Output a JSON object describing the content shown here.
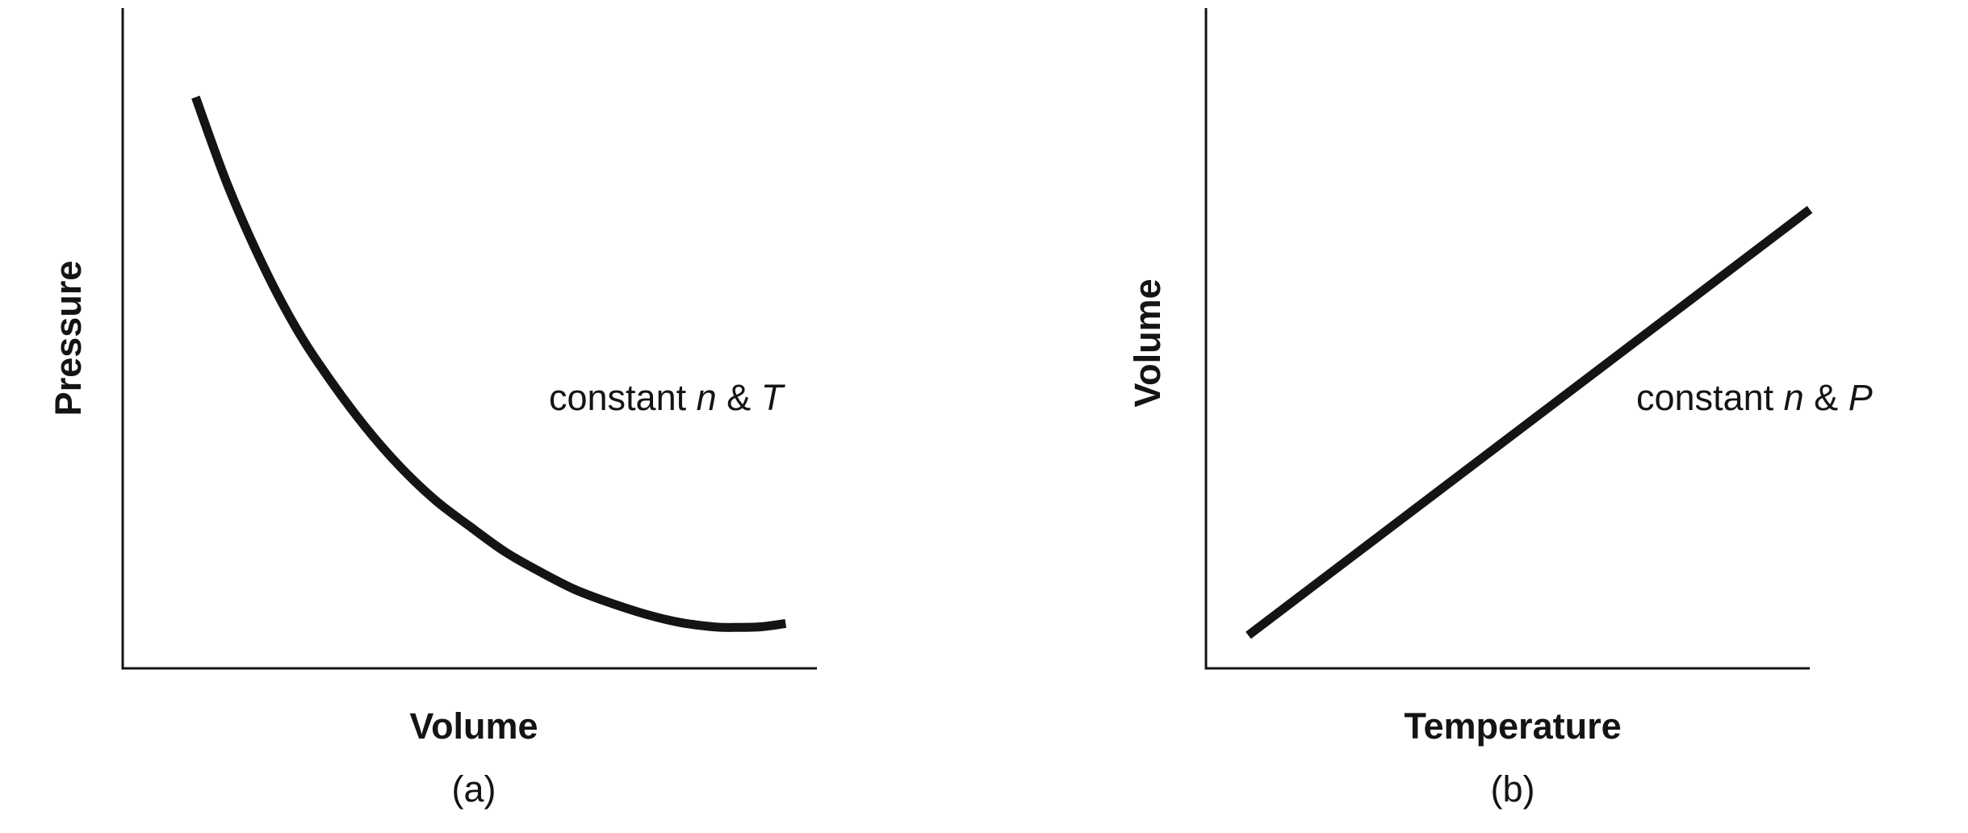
{
  "chart_data": [
    {
      "type": "line",
      "panel_label": "(a)",
      "xlabel": "Volume",
      "ylabel": "Pressure",
      "annotation": {
        "prefix": "constant ",
        "var1": "n",
        "joiner": " & ",
        "var2": "T"
      },
      "grid": false,
      "xlim": [
        0,
        1
      ],
      "ylim": [
        0,
        1
      ],
      "series": [
        {
          "x": [
            0.105,
            0.15,
            0.2,
            0.25,
            0.3,
            0.35,
            0.4,
            0.45,
            0.5,
            0.55,
            0.6,
            0.65,
            0.7,
            0.75,
            0.8,
            0.85,
            0.88,
            0.92,
            0.955
          ],
          "y": [
            0.865,
            0.735,
            0.615,
            0.515,
            0.435,
            0.365,
            0.305,
            0.255,
            0.215,
            0.177,
            0.147,
            0.12,
            0.1,
            0.083,
            0.07,
            0.063,
            0.062,
            0.063,
            0.068
          ],
          "color": "#141414"
        }
      ]
    },
    {
      "type": "line",
      "panel_label": "(b)",
      "xlabel": "Temperature",
      "ylabel": "Volume",
      "annotation": {
        "prefix": "constant ",
        "var1": "n",
        "joiner": " & ",
        "var2": "P"
      },
      "grid": false,
      "xlim": [
        0,
        1
      ],
      "ylim": [
        0,
        1
      ],
      "series": [
        {
          "x": [
            0.07,
            1.0
          ],
          "y": [
            0.05,
            0.695
          ],
          "color": "#141414"
        }
      ]
    }
  ]
}
